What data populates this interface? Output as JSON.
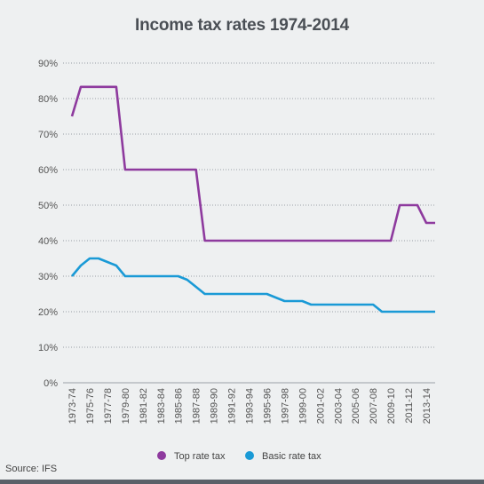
{
  "chart_data": {
    "type": "line",
    "title": "Income tax rates 1974-2014",
    "xlabel": "",
    "ylabel": "",
    "ylim": [
      0,
      90
    ],
    "yticks": [
      "0%",
      "10%",
      "20%",
      "30%",
      "40%",
      "50%",
      "60%",
      "70%",
      "80%",
      "90%"
    ],
    "x_labels": [
      "1973-74",
      "1975-76",
      "1977-78",
      "1979-80",
      "1981-82",
      "1983-84",
      "1985-86",
      "1987-88",
      "1989-90",
      "1991-92",
      "1993-94",
      "1995-96",
      "1997-98",
      "1999-00",
      "2001-02",
      "2003-04",
      "2005-06",
      "2007-08",
      "2009-10",
      "2011-12",
      "2013-14"
    ],
    "grid": true,
    "legend_position": "bottom",
    "series": [
      {
        "name": "Top rate tax",
        "color": "#8e3a9e",
        "points": [
          [
            "1973-74",
            75
          ],
          [
            "1974-75",
            83.3
          ],
          [
            "1975-76",
            83.3
          ],
          [
            "1976-77",
            83.3
          ],
          [
            "1977-78",
            83.3
          ],
          [
            "1978-79",
            83.3
          ],
          [
            "1979-80",
            60
          ],
          [
            "1980-81",
            60
          ],
          [
            "1981-82",
            60
          ],
          [
            "1982-83",
            60
          ],
          [
            "1983-84",
            60
          ],
          [
            "1984-85",
            60
          ],
          [
            "1985-86",
            60
          ],
          [
            "1986-87",
            60
          ],
          [
            "1987-88",
            60
          ],
          [
            "1988-89",
            40
          ],
          [
            "1989-90",
            40
          ],
          [
            "1990-91",
            40
          ],
          [
            "1991-92",
            40
          ],
          [
            "1992-93",
            40
          ],
          [
            "1993-94",
            40
          ],
          [
            "1994-95",
            40
          ],
          [
            "1995-96",
            40
          ],
          [
            "1996-97",
            40
          ],
          [
            "1997-98",
            40
          ],
          [
            "1998-99",
            40
          ],
          [
            "1999-00",
            40
          ],
          [
            "2000-01",
            40
          ],
          [
            "2001-02",
            40
          ],
          [
            "2002-03",
            40
          ],
          [
            "2003-04",
            40
          ],
          [
            "2004-05",
            40
          ],
          [
            "2005-06",
            40
          ],
          [
            "2006-07",
            40
          ],
          [
            "2007-08",
            40
          ],
          [
            "2008-09",
            40
          ],
          [
            "2009-10",
            40
          ],
          [
            "2010-11",
            50
          ],
          [
            "2011-12",
            50
          ],
          [
            "2012-13",
            50
          ],
          [
            "2013-14",
            45
          ],
          [
            "2014-15",
            45
          ]
        ]
      },
      {
        "name": "Basic rate tax",
        "color": "#1a9ad6",
        "points": [
          [
            "1973-74",
            30
          ],
          [
            "1974-75",
            33
          ],
          [
            "1975-76",
            35
          ],
          [
            "1976-77",
            35
          ],
          [
            "1977-78",
            34
          ],
          [
            "1978-79",
            33
          ],
          [
            "1979-80",
            30
          ],
          [
            "1980-81",
            30
          ],
          [
            "1981-82",
            30
          ],
          [
            "1982-83",
            30
          ],
          [
            "1983-84",
            30
          ],
          [
            "1984-85",
            30
          ],
          [
            "1985-86",
            30
          ],
          [
            "1986-87",
            29
          ],
          [
            "1987-88",
            27
          ],
          [
            "1988-89",
            25
          ],
          [
            "1989-90",
            25
          ],
          [
            "1990-91",
            25
          ],
          [
            "1991-92",
            25
          ],
          [
            "1992-93",
            25
          ],
          [
            "1993-94",
            25
          ],
          [
            "1994-95",
            25
          ],
          [
            "1995-96",
            25
          ],
          [
            "1996-97",
            24
          ],
          [
            "1997-98",
            23
          ],
          [
            "1998-99",
            23
          ],
          [
            "1999-00",
            23
          ],
          [
            "2000-01",
            22
          ],
          [
            "2001-02",
            22
          ],
          [
            "2002-03",
            22
          ],
          [
            "2003-04",
            22
          ],
          [
            "2004-05",
            22
          ],
          [
            "2005-06",
            22
          ],
          [
            "2006-07",
            22
          ],
          [
            "2007-08",
            22
          ],
          [
            "2008-09",
            20
          ],
          [
            "2009-10",
            20
          ],
          [
            "2010-11",
            20
          ],
          [
            "2011-12",
            20
          ],
          [
            "2012-13",
            20
          ],
          [
            "2013-14",
            20
          ],
          [
            "2014-15",
            20
          ]
        ]
      }
    ]
  },
  "source": "Source: IFS"
}
